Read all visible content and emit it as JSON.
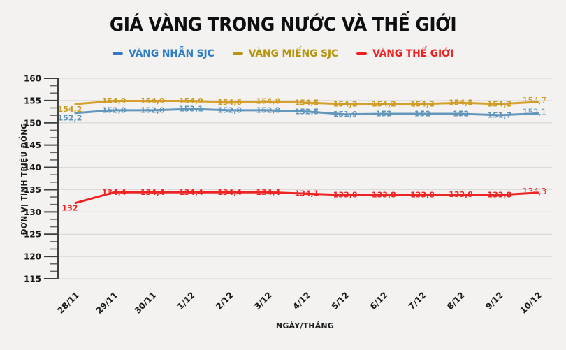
{
  "title": "GIÁ VÀNG TRONG NƯỚC VÀ THẾ GIỚI",
  "axis": {
    "y_label": "ĐƠN VỊ TÍNH TRIỆU ĐỒNG",
    "x_label": "NGÀY/THÁNG"
  },
  "colors": {
    "background": "#f3f2f1",
    "gridline": "#dbdad8",
    "axis": "#3f3f3f",
    "tick_minor": "#666666",
    "tick_label": "#1a1a1a",
    "title": "#0f0f0f"
  },
  "chart_data": {
    "type": "line",
    "title": "GIÁ VÀNG TRONG NƯỚC VÀ THẾ GIỚI",
    "xlabel": "NGÀY/THÁNG",
    "ylabel": "ĐƠN VỊ TÍNH TRIỆU ĐỒNG",
    "ylim": [
      115,
      160
    ],
    "y_tick_step": 5,
    "grid": "horizontal",
    "legend_position": "top",
    "categories": [
      "28/11",
      "29/11",
      "30/11",
      "1/12",
      "2/12",
      "3/12",
      "4/12",
      "5/12",
      "6/12",
      "7/12",
      "8/12",
      "9/12",
      "10/12"
    ],
    "series": [
      {
        "name": "VÀNG NHẪN SJC",
        "line_color": "#6397bc",
        "label_color": "#5e95bd",
        "legend_color": "#2e7dc4",
        "values": [
          152.2,
          152.8,
          152.8,
          153.1,
          152.8,
          152.8,
          152.5,
          151.9,
          152,
          152,
          152,
          151.7,
          152.1
        ],
        "labels": [
          "152,2",
          "152,8",
          "152,8",
          "153,1",
          "152,8",
          "152,8",
          "152,5",
          "151,9",
          "152",
          "152",
          "152",
          "151,7",
          "152,1"
        ]
      },
      {
        "name": "VÀNG MIẾNG SJC",
        "line_color": "#d6a02a",
        "label_color": "#cc9a20",
        "legend_color": "#b6950d",
        "values": [
          154.2,
          154.9,
          154.9,
          154.9,
          154.6,
          154.8,
          154.5,
          154.2,
          154.2,
          154.2,
          154.5,
          154.2,
          154.7
        ],
        "labels": [
          "154,2",
          "154,9",
          "154,9",
          "154,9",
          "154,6",
          "154,8",
          "154,5",
          "154,2",
          "154,2",
          "154,2",
          "154,5",
          "154,2",
          "154,7"
        ]
      },
      {
        "name": "VÀNG THẾ GIỚI",
        "line_color": "#ee2424",
        "label_color": "#ee2424",
        "legend_color": "#f11f1f",
        "values": [
          132,
          134.4,
          134.4,
          134.4,
          134.4,
          134.4,
          134.1,
          133.8,
          133.8,
          133.8,
          133.9,
          133.8,
          134.3
        ],
        "labels": [
          "132",
          "134,4",
          "134,4",
          "134,4",
          "134,4",
          "134,4",
          "134,1",
          "133,8",
          "133,8",
          "133,8",
          "133,9",
          "133,8",
          "134,3"
        ]
      }
    ]
  }
}
